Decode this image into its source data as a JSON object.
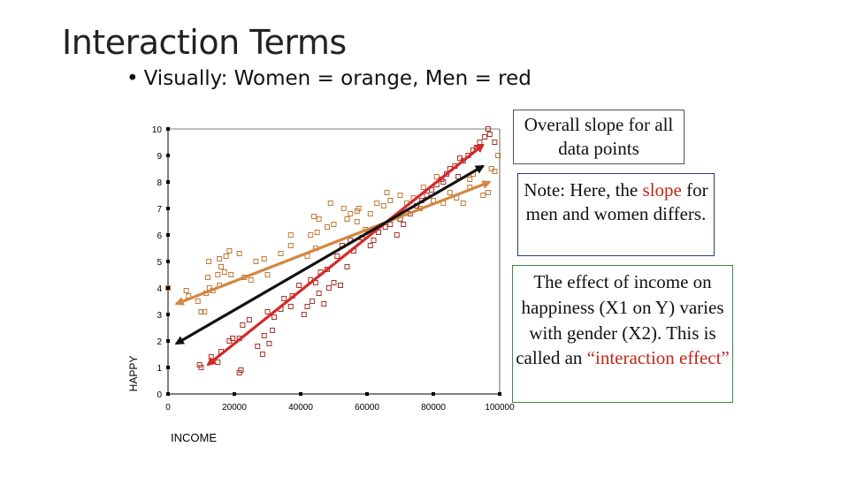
{
  "title": "Interaction Terms",
  "bullet": {
    "marker": "•",
    "text": "Visually:  Women = orange, Men = red"
  },
  "notes": {
    "overall": "Overall slope for all data points",
    "differs_prefix": "Note:  Here, the ",
    "differs_highlight": "slope",
    "differs_suffix": " for men and women differs.",
    "effect_main": "The effect of income on happiness (X1 on Y) varies with gender (X2).  This is called an ",
    "effect_highlight": "“interaction effect”"
  },
  "colors": {
    "women": "#d4873f",
    "men": "#d42a2a",
    "overall": "#111111",
    "women_marker": "#c07a3a",
    "men_marker": "#a83228"
  },
  "chart_data": {
    "type": "scatter",
    "title": "",
    "xlabel": "INCOME",
    "ylabel": "HAPPY",
    "xlim": [
      0,
      100000
    ],
    "ylim": [
      0,
      10
    ],
    "xticks": [
      "0",
      "20000",
      "40000",
      "60000",
      "80000",
      "100000"
    ],
    "yticks": [
      "0",
      "1",
      "2",
      "3",
      "4",
      "5",
      "6",
      "7",
      "8",
      "9",
      "10"
    ],
    "series": [
      {
        "name": "Women",
        "color": "#c07a3a",
        "points": [
          [
            0,
            4.0
          ],
          [
            5500,
            3.9
          ],
          [
            6200,
            3.7
          ],
          [
            10000,
            3.1
          ],
          [
            11000,
            3.1
          ],
          [
            9000,
            3.5
          ],
          [
            11500,
            3.8
          ],
          [
            12500,
            4.0
          ],
          [
            13500,
            3.9
          ],
          [
            15500,
            4.1
          ],
          [
            12000,
            4.4
          ],
          [
            15000,
            4.5
          ],
          [
            17000,
            4.6
          ],
          [
            19000,
            4.5
          ],
          [
            16000,
            4.8
          ],
          [
            12300,
            5.0
          ],
          [
            15500,
            5.1
          ],
          [
            17500,
            5.2
          ],
          [
            18500,
            5.4
          ],
          [
            21500,
            5.3
          ],
          [
            23000,
            4.4
          ],
          [
            25000,
            4.3
          ],
          [
            30000,
            4.5
          ],
          [
            26500,
            5.0
          ],
          [
            29000,
            5.1
          ],
          [
            34000,
            5.3
          ],
          [
            37000,
            5.6
          ],
          [
            42000,
            5.2
          ],
          [
            44500,
            5.5
          ],
          [
            45000,
            6.1
          ],
          [
            48000,
            6.3
          ],
          [
            37000,
            6.0
          ],
          [
            43000,
            6.0
          ],
          [
            45500,
            6.6
          ],
          [
            44000,
            6.7
          ],
          [
            50000,
            6.4
          ],
          [
            54000,
            6.6
          ],
          [
            55000,
            6.8
          ],
          [
            57000,
            6.5
          ],
          [
            53000,
            7.0
          ],
          [
            57500,
            7.0
          ],
          [
            61000,
            6.8
          ],
          [
            63000,
            7.2
          ],
          [
            65000,
            7.1
          ],
          [
            67000,
            7.3
          ],
          [
            66000,
            7.6
          ],
          [
            70000,
            7.5
          ],
          [
            72000,
            7.2
          ],
          [
            74000,
            7.4
          ],
          [
            76000,
            7.0
          ],
          [
            78000,
            7.5
          ],
          [
            80000,
            7.3
          ],
          [
            83000,
            7.2
          ],
          [
            85000,
            7.6
          ],
          [
            87000,
            7.4
          ],
          [
            89000,
            7.2
          ],
          [
            91000,
            7.8
          ],
          [
            95000,
            7.5
          ],
          [
            96500,
            7.6
          ],
          [
            91000,
            8.1
          ],
          [
            92000,
            8.3
          ],
          [
            97500,
            8.5
          ],
          [
            98500,
            8.4
          ],
          [
            99500,
            9.0
          ],
          [
            81000,
            8.2
          ],
          [
            77000,
            7.8
          ],
          [
            57000,
            6.9
          ],
          [
            59500,
            6.2
          ],
          [
            49000,
            7.2
          ]
        ]
      },
      {
        "name": "Men",
        "color": "#a83228",
        "points": [
          [
            9500,
            1.1
          ],
          [
            10000,
            1.0
          ],
          [
            15000,
            1.2
          ],
          [
            13000,
            1.4
          ],
          [
            16000,
            1.6
          ],
          [
            21500,
            0.8
          ],
          [
            22000,
            0.9
          ],
          [
            18500,
            2.0
          ],
          [
            19500,
            2.1
          ],
          [
            21500,
            2.1
          ],
          [
            22500,
            2.6
          ],
          [
            24500,
            2.8
          ],
          [
            27000,
            1.8
          ],
          [
            28500,
            1.5
          ],
          [
            30500,
            1.9
          ],
          [
            29000,
            2.2
          ],
          [
            31500,
            2.4
          ],
          [
            30000,
            3.1
          ],
          [
            32000,
            2.9
          ],
          [
            34000,
            3.2
          ],
          [
            37000,
            3.3
          ],
          [
            35000,
            3.6
          ],
          [
            37500,
            3.7
          ],
          [
            41000,
            3.0
          ],
          [
            42000,
            3.3
          ],
          [
            43500,
            3.5
          ],
          [
            45500,
            3.8
          ],
          [
            47000,
            3.4
          ],
          [
            48500,
            4.0
          ],
          [
            39500,
            4.1
          ],
          [
            43000,
            4.3
          ],
          [
            44500,
            4.2
          ],
          [
            46000,
            4.6
          ],
          [
            48000,
            4.7
          ],
          [
            50000,
            4.2
          ],
          [
            52000,
            4.1
          ],
          [
            54000,
            4.8
          ],
          [
            51000,
            5.2
          ],
          [
            52500,
            5.6
          ],
          [
            55000,
            5.8
          ],
          [
            56000,
            5.4
          ],
          [
            58500,
            5.9
          ],
          [
            61000,
            5.6
          ],
          [
            62000,
            5.8
          ],
          [
            63500,
            6.1
          ],
          [
            65500,
            6.3
          ],
          [
            67000,
            6.4
          ],
          [
            69000,
            6.0
          ],
          [
            70000,
            6.6
          ],
          [
            71000,
            6.4
          ],
          [
            73000,
            6.8
          ],
          [
            75000,
            7.1
          ],
          [
            76500,
            7.3
          ],
          [
            78000,
            7.5
          ],
          [
            79500,
            7.7
          ],
          [
            81000,
            7.9
          ],
          [
            82500,
            8.1
          ],
          [
            84000,
            8.3
          ],
          [
            85000,
            8.5
          ],
          [
            86500,
            8.6
          ],
          [
            88000,
            8.9
          ],
          [
            89000,
            8.8
          ],
          [
            90500,
            9.0
          ],
          [
            92000,
            9.2
          ],
          [
            93000,
            9.3
          ],
          [
            94000,
            9.5
          ],
          [
            95500,
            9.7
          ],
          [
            97000,
            9.8
          ],
          [
            98500,
            9.5
          ],
          [
            96500,
            10.0
          ],
          [
            83000,
            8.0
          ],
          [
            87500,
            8.2
          ]
        ]
      }
    ],
    "fit_lines": [
      {
        "name": "Women",
        "from": [
          2500,
          3.4
        ],
        "to": [
          97000,
          8.0
        ],
        "color": "#d4873f"
      },
      {
        "name": "Men",
        "from": [
          12000,
          1.1
        ],
        "to": [
          95000,
          9.4
        ],
        "color": "#d42a2a"
      },
      {
        "name": "Overall",
        "from": [
          2500,
          1.9
        ],
        "to": [
          95000,
          8.6
        ],
        "color": "#111111"
      }
    ]
  }
}
